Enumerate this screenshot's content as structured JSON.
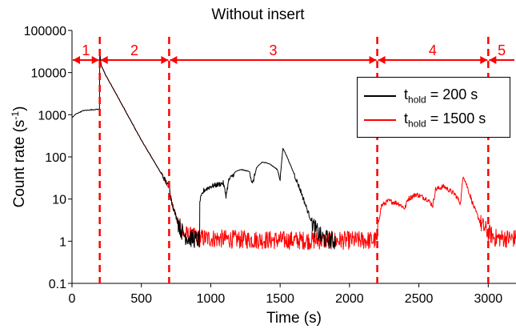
{
  "chart_data": {
    "type": "line",
    "title": "Without insert",
    "xlabel": "Time (s)",
    "ylabel": "Count rate (s",
    "ylabel_sup": "-1",
    "ylabel_close": ")",
    "xlim": [
      0,
      3200
    ],
    "ylim": [
      0.1,
      100000
    ],
    "yscale": "log",
    "x_ticks": [
      0,
      500,
      1000,
      1500,
      2000,
      2500,
      3000
    ],
    "x_tick_labels": [
      "0",
      "500",
      "1000",
      "1500",
      "2000",
      "2500",
      "3000"
    ],
    "y_ticks": [
      0.1,
      1,
      10,
      100,
      1000,
      10000,
      100000
    ],
    "y_tick_labels": [
      "0.1",
      "1",
      "10",
      "100",
      "1000",
      "10000",
      "100000"
    ],
    "grid": false,
    "legend_position": "top-right",
    "series": [
      {
        "name_main": "t",
        "name_sub": "hold",
        "name_rest": " = 200 s",
        "color": "#000000",
        "points": [
          [
            0,
            850
          ],
          [
            30,
            1050
          ],
          [
            80,
            1250
          ],
          [
            150,
            1320
          ],
          [
            198,
            1350
          ],
          [
            200,
            30000
          ],
          [
            210,
            15000
          ],
          [
            240,
            9000
          ],
          [
            300,
            4000
          ],
          [
            400,
            1000
          ],
          [
            500,
            250
          ],
          [
            600,
            70
          ],
          [
            690,
            22
          ],
          [
            700,
            20
          ],
          [
            720,
            8
          ],
          [
            760,
            3
          ],
          [
            800,
            1.5
          ],
          [
            840,
            1.2
          ],
          [
            900,
            1.1
          ],
          [
            920,
            1.1
          ],
          [
            921,
            9
          ],
          [
            950,
            16
          ],
          [
            1000,
            20
          ],
          [
            1050,
            22
          ],
          [
            1090,
            24
          ],
          [
            1110,
            12
          ],
          [
            1130,
            28
          ],
          [
            1180,
            45
          ],
          [
            1220,
            50
          ],
          [
            1280,
            45
          ],
          [
            1300,
            22
          ],
          [
            1330,
            55
          ],
          [
            1370,
            75
          ],
          [
            1420,
            70
          ],
          [
            1480,
            50
          ],
          [
            1500,
            30
          ],
          [
            1520,
            160
          ],
          [
            1540,
            120
          ],
          [
            1600,
            40
          ],
          [
            1650,
            15
          ],
          [
            1700,
            5
          ],
          [
            1750,
            2
          ],
          [
            1800,
            1.2
          ],
          [
            1900,
            1.0
          ]
        ]
      },
      {
        "name_main": "t",
        "name_sub": "hold",
        "name_rest": " = 1500 s",
        "color": "#ff0000",
        "points": [
          [
            200,
            30000
          ],
          [
            210,
            15000
          ],
          [
            240,
            9000
          ],
          [
            300,
            4000
          ],
          [
            400,
            1000
          ],
          [
            500,
            250
          ],
          [
            600,
            70
          ],
          [
            690,
            22
          ],
          [
            700,
            20
          ],
          [
            720,
            8
          ],
          [
            760,
            3
          ],
          [
            800,
            1.5
          ],
          [
            900,
            1.2
          ],
          [
            1200,
            1.1
          ],
          [
            1600,
            1.05
          ],
          [
            2000,
            1.05
          ],
          [
            2200,
            1.05
          ],
          [
            2210,
            3
          ],
          [
            2230,
            7
          ],
          [
            2280,
            9
          ],
          [
            2350,
            8
          ],
          [
            2400,
            6
          ],
          [
            2420,
            10
          ],
          [
            2480,
            13
          ],
          [
            2560,
            10
          ],
          [
            2600,
            7
          ],
          [
            2620,
            17
          ],
          [
            2680,
            20
          ],
          [
            2760,
            13
          ],
          [
            2800,
            8
          ],
          [
            2820,
            38
          ],
          [
            2860,
            15
          ],
          [
            2900,
            6
          ],
          [
            2950,
            2.5
          ],
          [
            3000,
            1.6
          ],
          [
            3050,
            1.2
          ],
          [
            3200,
            1.15
          ]
        ]
      }
    ],
    "phase_boundaries": [
      200,
      700,
      2200,
      3000
    ],
    "phase_labels": [
      "1",
      "2",
      "3",
      "4",
      "5"
    ],
    "phase_ranges": [
      [
        0,
        200
      ],
      [
        200,
        700
      ],
      [
        700,
        2200
      ],
      [
        2200,
        3000
      ],
      [
        3000,
        3200
      ]
    ],
    "annotation_color": "#ff0000"
  }
}
